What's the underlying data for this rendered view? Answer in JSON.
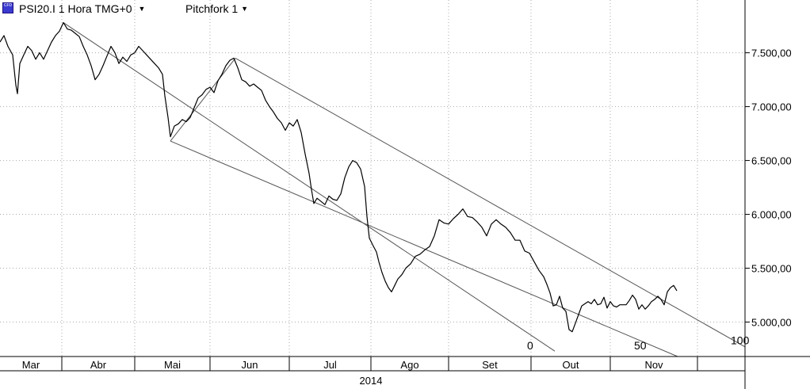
{
  "header": {
    "symbol_label": "PSI20.I 1 Hora TMG+0",
    "pitchfork_label": "Pitchfork 1",
    "icon": "cfd-icon",
    "chevron_icon": "chevron-down-icon"
  },
  "colors": {
    "background": "#ffffff",
    "price_line": "#000000",
    "pitchfork_line": "#555555",
    "grid_dot": "#aaaaaa",
    "axis": "#000000"
  },
  "chart_data": {
    "type": "line",
    "title": "",
    "xlabel": "2014",
    "ylabel": "",
    "year_label": "2014",
    "month_labels": [
      "Mar",
      "Abr",
      "Mai",
      "Jun",
      "Jul",
      "Ago",
      "Set",
      "Out",
      "Nov"
    ],
    "y_ticks": [
      5000,
      5500,
      6000,
      6500,
      7000,
      7500
    ],
    "y_tick_labels": [
      "5.000,00",
      "5.500,00",
      "6.000,00",
      "6.500,00",
      "7.000,00",
      "7.500,00"
    ],
    "ylim": [
      4680,
      7990
    ],
    "x_unit": "bars",
    "xlim": [
      0,
      940
    ],
    "grid": true,
    "price_points": [
      [
        0,
        7600
      ],
      [
        5,
        7660
      ],
      [
        10,
        7560
      ],
      [
        16,
        7480
      ],
      [
        20,
        7200
      ],
      [
        22,
        7120
      ],
      [
        25,
        7400
      ],
      [
        30,
        7480
      ],
      [
        35,
        7560
      ],
      [
        40,
        7520
      ],
      [
        45,
        7440
      ],
      [
        50,
        7500
      ],
      [
        55,
        7440
      ],
      [
        60,
        7520
      ],
      [
        65,
        7600
      ],
      [
        70,
        7660
      ],
      [
        75,
        7700
      ],
      [
        80,
        7780
      ],
      [
        85,
        7720
      ],
      [
        90,
        7710
      ],
      [
        95,
        7680
      ],
      [
        100,
        7650
      ],
      [
        105,
        7560
      ],
      [
        110,
        7480
      ],
      [
        115,
        7380
      ],
      [
        120,
        7250
      ],
      [
        125,
        7300
      ],
      [
        130,
        7380
      ],
      [
        135,
        7470
      ],
      [
        140,
        7560
      ],
      [
        145,
        7500
      ],
      [
        150,
        7400
      ],
      [
        155,
        7460
      ],
      [
        160,
        7420
      ],
      [
        165,
        7480
      ],
      [
        170,
        7500
      ],
      [
        175,
        7560
      ],
      [
        180,
        7520
      ],
      [
        185,
        7480
      ],
      [
        190,
        7440
      ],
      [
        195,
        7400
      ],
      [
        200,
        7360
      ],
      [
        205,
        7300
      ],
      [
        208,
        7100
      ],
      [
        212,
        6900
      ],
      [
        215,
        6720
      ],
      [
        220,
        6820
      ],
      [
        225,
        6840
      ],
      [
        230,
        6880
      ],
      [
        235,
        6860
      ],
      [
        240,
        6900
      ],
      [
        245,
        6990
      ],
      [
        250,
        7080
      ],
      [
        255,
        7110
      ],
      [
        260,
        7160
      ],
      [
        265,
        7180
      ],
      [
        270,
        7130
      ],
      [
        275,
        7240
      ],
      [
        280,
        7300
      ],
      [
        285,
        7380
      ],
      [
        290,
        7430
      ],
      [
        295,
        7450
      ],
      [
        300,
        7360
      ],
      [
        305,
        7250
      ],
      [
        310,
        7230
      ],
      [
        315,
        7190
      ],
      [
        320,
        7210
      ],
      [
        325,
        7180
      ],
      [
        330,
        7150
      ],
      [
        335,
        7060
      ],
      [
        340,
        7000
      ],
      [
        345,
        6950
      ],
      [
        350,
        6890
      ],
      [
        355,
        6850
      ],
      [
        360,
        6780
      ],
      [
        365,
        6850
      ],
      [
        370,
        6820
      ],
      [
        375,
        6880
      ],
      [
        380,
        6760
      ],
      [
        385,
        6560
      ],
      [
        390,
        6380
      ],
      [
        393,
        6230
      ],
      [
        396,
        6100
      ],
      [
        400,
        6150
      ],
      [
        405,
        6120
      ],
      [
        410,
        6090
      ],
      [
        415,
        6170
      ],
      [
        420,
        6140
      ],
      [
        425,
        6130
      ],
      [
        430,
        6190
      ],
      [
        435,
        6340
      ],
      [
        440,
        6440
      ],
      [
        445,
        6500
      ],
      [
        450,
        6480
      ],
      [
        455,
        6420
      ],
      [
        460,
        6260
      ],
      [
        463,
        5980
      ],
      [
        466,
        5780
      ],
      [
        470,
        5720
      ],
      [
        475,
        5650
      ],
      [
        478,
        5560
      ],
      [
        482,
        5460
      ],
      [
        486,
        5380
      ],
      [
        490,
        5320
      ],
      [
        494,
        5280
      ],
      [
        498,
        5340
      ],
      [
        502,
        5400
      ],
      [
        507,
        5440
      ],
      [
        512,
        5500
      ],
      [
        518,
        5540
      ],
      [
        524,
        5610
      ],
      [
        530,
        5630
      ],
      [
        536,
        5670
      ],
      [
        542,
        5700
      ],
      [
        548,
        5800
      ],
      [
        554,
        5950
      ],
      [
        560,
        5920
      ],
      [
        566,
        5910
      ],
      [
        572,
        5960
      ],
      [
        578,
        6000
      ],
      [
        584,
        6050
      ],
      [
        590,
        5980
      ],
      [
        596,
        5970
      ],
      [
        602,
        5930
      ],
      [
        608,
        5880
      ],
      [
        614,
        5800
      ],
      [
        620,
        5910
      ],
      [
        626,
        5950
      ],
      [
        632,
        5910
      ],
      [
        638,
        5880
      ],
      [
        644,
        5830
      ],
      [
        650,
        5760
      ],
      [
        656,
        5760
      ],
      [
        662,
        5660
      ],
      [
        668,
        5640
      ],
      [
        674,
        5560
      ],
      [
        680,
        5480
      ],
      [
        686,
        5420
      ],
      [
        690,
        5350
      ],
      [
        694,
        5270
      ],
      [
        698,
        5150
      ],
      [
        702,
        5160
      ],
      [
        706,
        5240
      ],
      [
        710,
        5130
      ],
      [
        714,
        5100
      ],
      [
        718,
        4930
      ],
      [
        722,
        4910
      ],
      [
        726,
        4990
      ],
      [
        730,
        5070
      ],
      [
        734,
        5150
      ],
      [
        738,
        5170
      ],
      [
        742,
        5190
      ],
      [
        746,
        5170
      ],
      [
        750,
        5210
      ],
      [
        754,
        5160
      ],
      [
        758,
        5170
      ],
      [
        762,
        5230
      ],
      [
        766,
        5130
      ],
      [
        770,
        5190
      ],
      [
        774,
        5150
      ],
      [
        778,
        5140
      ],
      [
        782,
        5160
      ],
      [
        786,
        5160
      ],
      [
        790,
        5160
      ],
      [
        794,
        5200
      ],
      [
        798,
        5250
      ],
      [
        802,
        5210
      ],
      [
        806,
        5120
      ],
      [
        810,
        5160
      ],
      [
        814,
        5120
      ],
      [
        818,
        5150
      ],
      [
        822,
        5190
      ],
      [
        826,
        5210
      ],
      [
        830,
        5240
      ],
      [
        834,
        5210
      ],
      [
        838,
        5160
      ],
      [
        842,
        5280
      ],
      [
        846,
        5320
      ],
      [
        850,
        5340
      ],
      [
        854,
        5290
      ]
    ],
    "pitchfork": {
      "name": "Pitchfork 1",
      "anchor_points": [
        [
          80,
          7780
        ],
        [
          215,
          6680
        ],
        [
          297,
          7450
        ]
      ],
      "median": [
        [
          80,
          7780
        ],
        [
          700,
          4730
        ]
      ],
      "upper": [
        [
          297,
          7450
        ],
        [
          940,
          4770
        ]
      ],
      "lower": [
        [
          215,
          6680
        ],
        [
          855,
          4680
        ]
      ],
      "level_labels": [
        "0",
        "50",
        "100"
      ],
      "level_label_positions": [
        [
          665,
          4730
        ],
        [
          800,
          4730
        ],
        [
          922,
          4780
        ]
      ]
    }
  }
}
